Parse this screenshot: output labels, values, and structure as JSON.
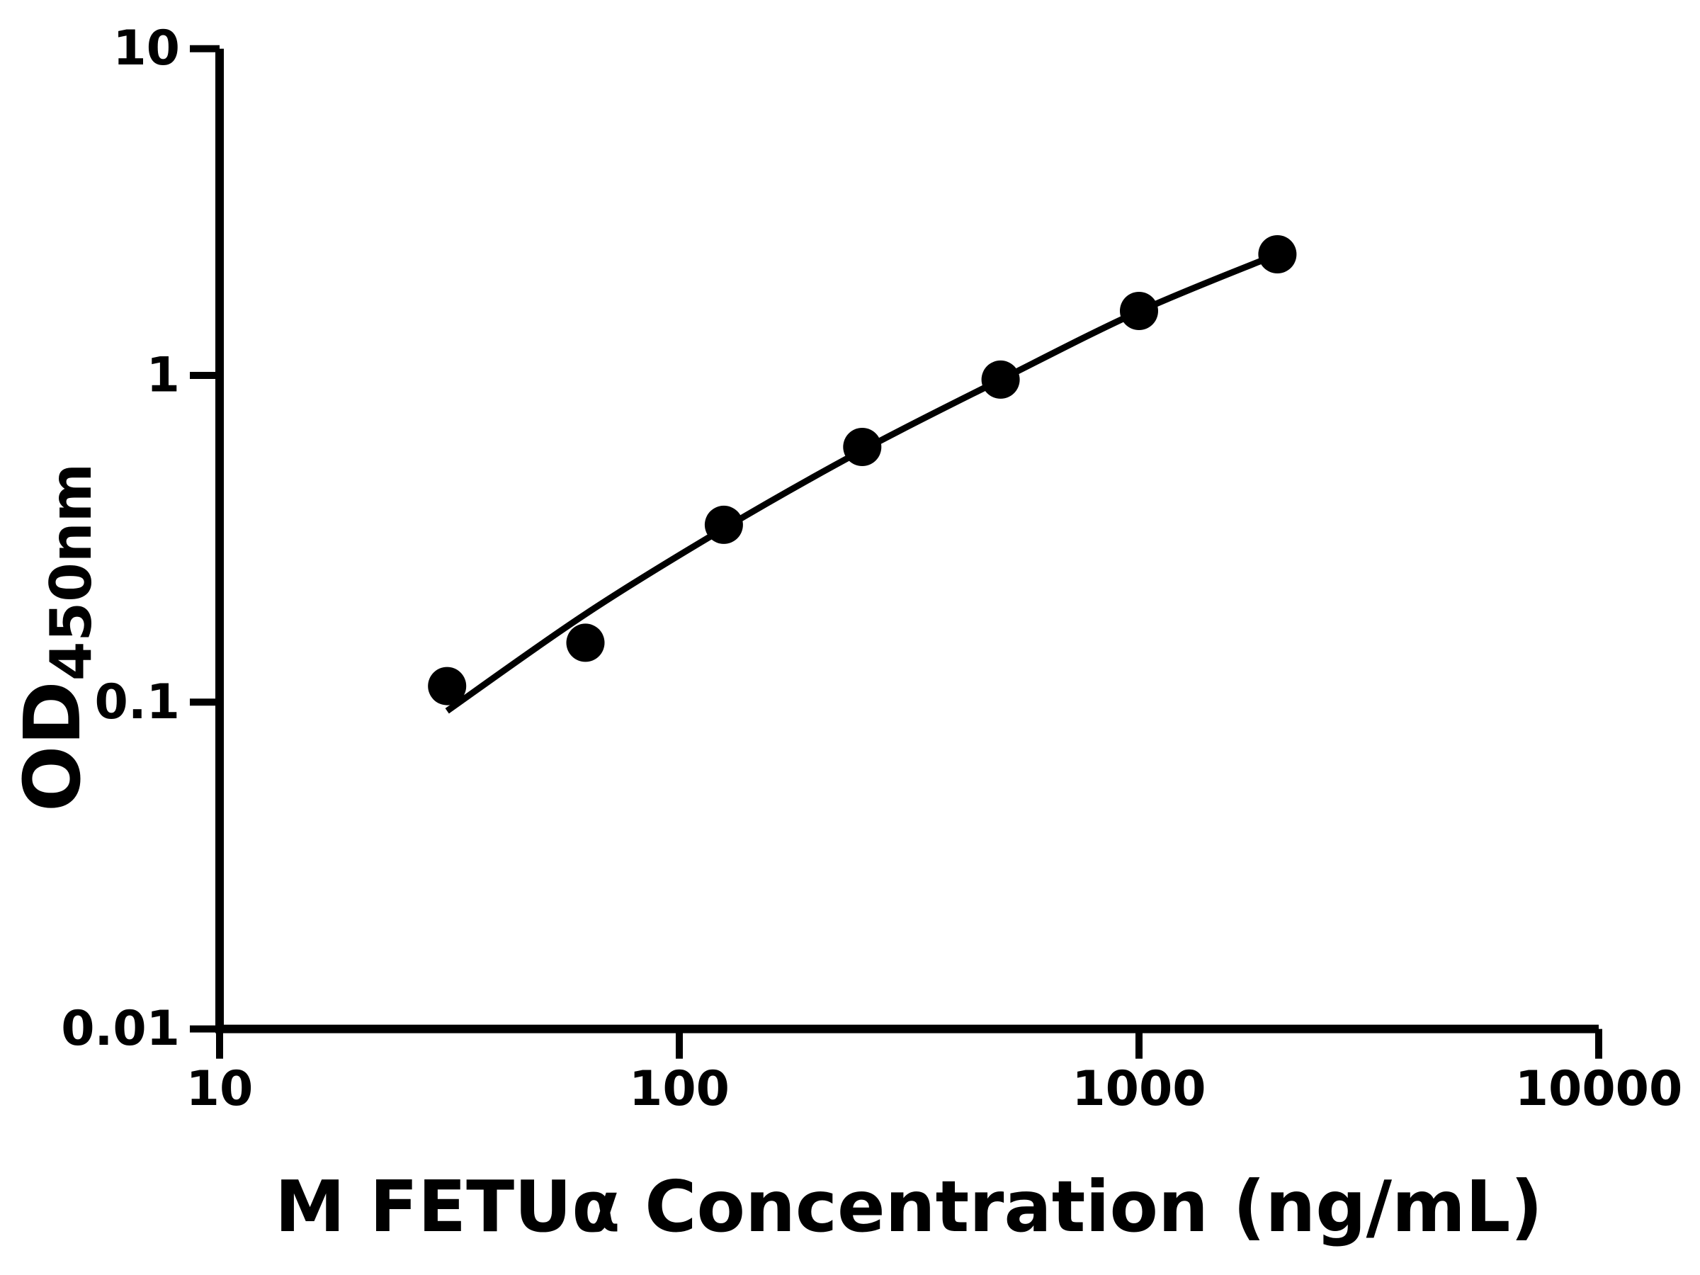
{
  "figure": {
    "background_color": "#ffffff",
    "ink_color": "#000000"
  },
  "chart_data": {
    "type": "scatter",
    "subtype": "elisa-standard-curve",
    "title": "",
    "xlabel": "M FETUα Concentration (ng/mL)",
    "ylabel_main": "OD",
    "ylabel_sub": "450nm",
    "x_scale": "log10",
    "y_scale": "log10",
    "xlim": [
      10,
      10000
    ],
    "ylim": [
      0.01,
      10
    ],
    "grid": false,
    "legend_position": "none",
    "marker": {
      "shape": "circle",
      "color": "#000000",
      "radius_px": 27
    },
    "line_color": "#000000",
    "x_ticks": [
      {
        "v": 10,
        "label": "10"
      },
      {
        "v": 100,
        "label": "100"
      },
      {
        "v": 1000,
        "label": "1000"
      },
      {
        "v": 10000,
        "label": "10000"
      }
    ],
    "y_ticks": [
      {
        "v": 10,
        "label": "10"
      },
      {
        "v": 1,
        "label": "1"
      },
      {
        "v": 0.1,
        "label": "0.1"
      },
      {
        "v": 0.01,
        "label": "0.01"
      }
    ],
    "series": [
      {
        "name": "standard-points",
        "type": "scatter",
        "points": [
          {
            "x": 31.25,
            "y": 0.112
          },
          {
            "x": 62.5,
            "y": 0.152
          },
          {
            "x": 125,
            "y": 0.349
          },
          {
            "x": 250,
            "y": 0.604
          },
          {
            "x": 500,
            "y": 0.971
          },
          {
            "x": 1000,
            "y": 1.575
          },
          {
            "x": 2000,
            "y": 2.348
          }
        ]
      },
      {
        "name": "fit-curve",
        "type": "line",
        "points": [
          {
            "x": 31.25,
            "y": 0.094
          },
          {
            "x": 62.5,
            "y": 0.186
          },
          {
            "x": 125,
            "y": 0.34
          },
          {
            "x": 250,
            "y": 0.59
          },
          {
            "x": 500,
            "y": 0.97
          },
          {
            "x": 1000,
            "y": 1.57
          },
          {
            "x": 2000,
            "y": 2.348
          }
        ]
      }
    ]
  }
}
